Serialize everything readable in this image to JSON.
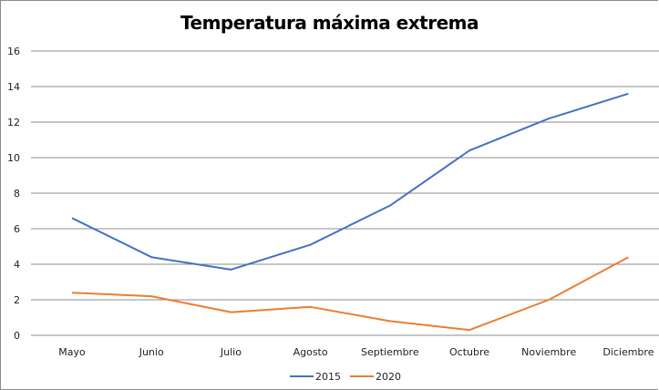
{
  "chart_data": {
    "type": "line",
    "title": "Temperatura máxima extrema",
    "xlabel": "",
    "ylabel": "",
    "categories": [
      "Mayo",
      "Junio",
      "Julio",
      "Agosto",
      "Septiembre",
      "Octubre",
      "Noviembre",
      "Diciembre"
    ],
    "ylim": [
      0,
      16
    ],
    "yticks": [
      "0",
      "2",
      "4",
      "6",
      "8",
      "10",
      "12",
      "14",
      "16"
    ],
    "grid": true,
    "legend_position": "bottom",
    "series": [
      {
        "name": "2015",
        "color": "#4472c4",
        "values": [
          6.6,
          4.4,
          3.7,
          5.1,
          7.3,
          10.4,
          12.2,
          13.6
        ]
      },
      {
        "name": "2020",
        "color": "#ed7d31",
        "values": [
          2.4,
          2.2,
          1.3,
          1.6,
          0.8,
          0.3,
          2.0,
          4.4
        ]
      }
    ]
  }
}
